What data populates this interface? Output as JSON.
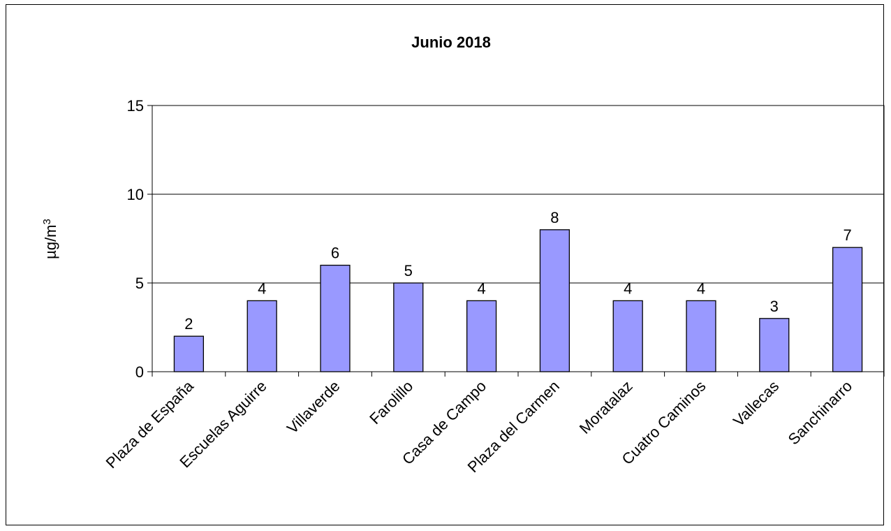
{
  "chart_data": {
    "type": "bar",
    "title": "Junio 2018",
    "ylabel": "µg/m3",
    "ylabel_base": "µg/m",
    "ylabel_sup": "3",
    "xlabel": "",
    "ylim": [
      0,
      15
    ],
    "yticks": [
      0,
      5,
      10,
      15
    ],
    "grid": true,
    "legend": "none",
    "bar_color": "#9999ff",
    "categories": [
      "Plaza de España",
      "Escuelas Aguirre",
      "Villaverde",
      "Farolillo",
      "Casa de Campo",
      "Plaza del Carmen",
      "Moratalaz",
      "Cuatro Caminos",
      "Vallecas",
      "Sanchinarro"
    ],
    "values": [
      2,
      4,
      6,
      5,
      4,
      8,
      4,
      4,
      3,
      7
    ]
  }
}
